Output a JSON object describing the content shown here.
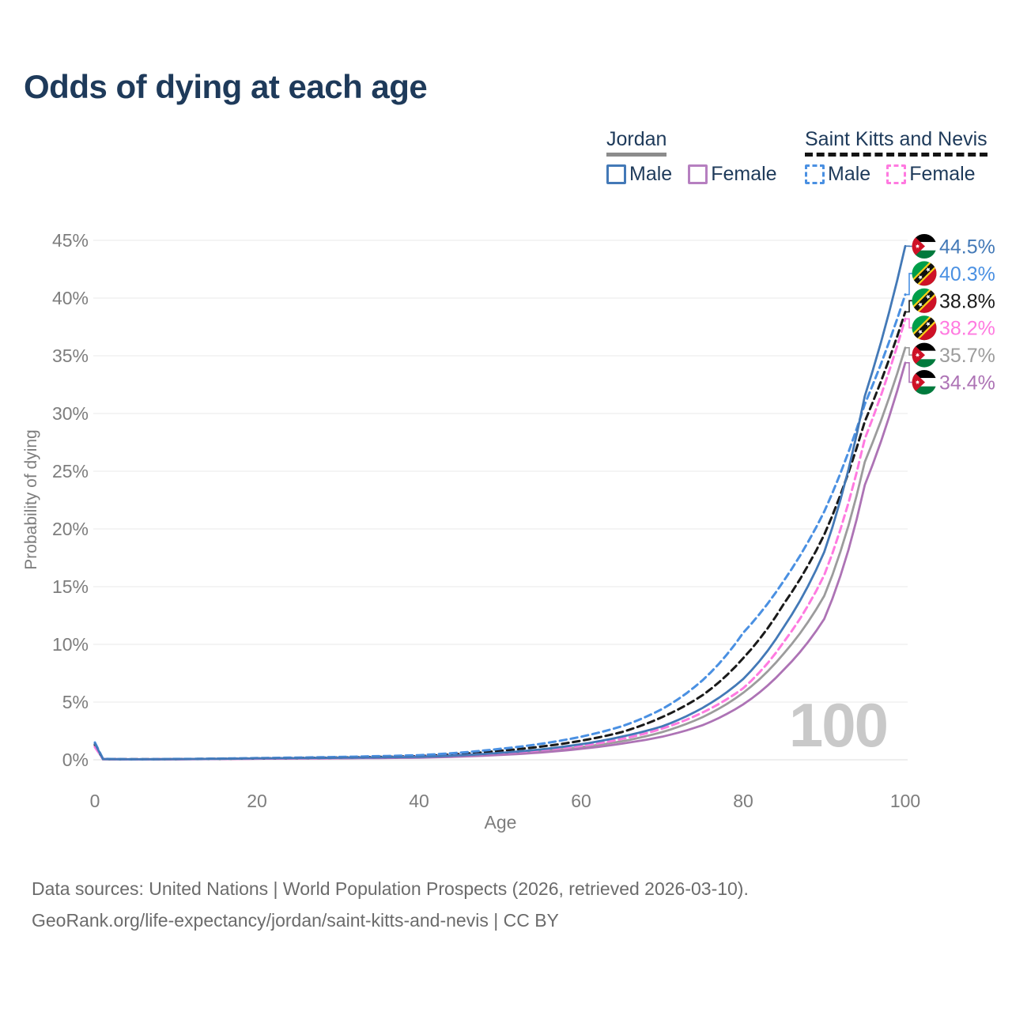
{
  "title": "Odds of dying at each age",
  "legend": {
    "groups": [
      {
        "country": "Jordan",
        "underline": "solid",
        "underline_color": "#8c8c8c",
        "items": [
          {
            "label": "Male",
            "color": "#4379b7",
            "dashed": false
          },
          {
            "label": "Female",
            "color": "#b67fc0",
            "dashed": false
          }
        ]
      },
      {
        "country": "Saint Kitts and Nevis",
        "underline": "dashed",
        "underline_color": "#141414",
        "items": [
          {
            "label": "Male",
            "color": "#4a90e2",
            "dashed": true
          },
          {
            "label": "Female",
            "color": "#ff7ae0",
            "dashed": true
          }
        ]
      }
    ]
  },
  "watermark": "100",
  "footer": {
    "line1": "Data sources: United Nations | World Population Prospects (2026, retrieved 2026-03-10).",
    "line2": "GeoRank.org/life-expectancy/jordan/saint-kitts-and-nevis | CC BY"
  },
  "chart_data": {
    "type": "line",
    "title": "Odds of dying at each age",
    "xlabel": "Age",
    "ylabel": "Probability of dying",
    "xlim": [
      0,
      100
    ],
    "ylim": [
      0,
      45
    ],
    "xticks": [
      0,
      20,
      40,
      60,
      80,
      100
    ],
    "yticks": [
      0,
      5,
      10,
      15,
      20,
      25,
      30,
      35,
      40,
      45
    ],
    "ytick_suffix": "%",
    "grid": true,
    "legend_position": "top-right",
    "anchor_ages": [
      0,
      1,
      5,
      20,
      40,
      50,
      60,
      65,
      70,
      75,
      80,
      85,
      90,
      95,
      100
    ],
    "series": [
      {
        "name": "Jordan Male",
        "slug": "jordan-male",
        "country": "Jordan",
        "sex": "Male",
        "flag": "jordan",
        "color": "#4379b7",
        "dashed": false,
        "end_value": 44.5,
        "end_label": "44.5%",
        "values": [
          1.4,
          0.06,
          0.04,
          0.12,
          0.25,
          0.6,
          1.35,
          2.0,
          2.9,
          4.5,
          7.0,
          11.5,
          18.0,
          31.5,
          44.5
        ]
      },
      {
        "name": "Saint Kitts and Nevis Male",
        "slug": "saint-kitts-and-nevis-male",
        "country": "Saint Kitts and Nevis",
        "sex": "Male",
        "flag": "skn",
        "color": "#4a90e2",
        "dashed": true,
        "end_value": 40.3,
        "end_label": "40.3%",
        "values": [
          1.5,
          0.08,
          0.05,
          0.15,
          0.4,
          0.95,
          2.0,
          2.9,
          4.4,
          6.9,
          11.0,
          15.5,
          21.5,
          30.8,
          40.3
        ]
      },
      {
        "name": "Saint Kitts and Nevis Both sexes",
        "slug": "saint-kitts-and-nevis-both",
        "country": "Saint Kitts and Nevis",
        "sex": "Both",
        "flag": "skn",
        "color": "#1a1a1a",
        "dashed": true,
        "end_value": 38.8,
        "end_label": "38.8%",
        "values": [
          1.3,
          0.07,
          0.045,
          0.12,
          0.32,
          0.78,
          1.65,
          2.4,
          3.7,
          5.6,
          8.8,
          13.5,
          19.5,
          29.3,
          38.8
        ]
      },
      {
        "name": "Saint Kitts and Nevis Female",
        "slug": "saint-kitts-and-nevis-female",
        "country": "Saint Kitts and Nevis",
        "sex": "Female",
        "flag": "skn",
        "color": "#ff7ae0",
        "dashed": true,
        "end_value": 38.2,
        "end_label": "38.2%",
        "values": [
          1.1,
          0.06,
          0.04,
          0.1,
          0.26,
          0.58,
          1.2,
          1.8,
          2.7,
          4.1,
          6.2,
          10.2,
          16.0,
          27.8,
          38.2
        ]
      },
      {
        "name": "Jordan Both sexes",
        "slug": "jordan-both",
        "country": "Jordan",
        "sex": "Both",
        "flag": "jordan",
        "color": "#9c9c9c",
        "dashed": false,
        "end_value": 35.7,
        "end_label": "35.7%",
        "values": [
          1.3,
          0.055,
          0.038,
          0.1,
          0.22,
          0.5,
          1.1,
          1.6,
          2.4,
          3.7,
          5.8,
          9.2,
          14.2,
          25.8,
          35.7
        ]
      },
      {
        "name": "Jordan Female",
        "slug": "jordan-female",
        "country": "Jordan",
        "sex": "Female",
        "flag": "jordan",
        "color": "#ad73b5",
        "dashed": false,
        "end_value": 34.4,
        "end_label": "34.4%",
        "values": [
          1.2,
          0.05,
          0.035,
          0.09,
          0.18,
          0.42,
          0.95,
          1.4,
          2.0,
          3.0,
          4.8,
          7.8,
          12.2,
          23.8,
          34.4
        ]
      }
    ],
    "flag_colors": {
      "jordan": {
        "black": "#000000",
        "white": "#ffffff",
        "green": "#007A3D",
        "red": "#CE1126"
      },
      "skn": {
        "green": "#009E49",
        "red": "#CE1126",
        "yellow": "#FCD116",
        "black": "#111111",
        "star": "#ffffff"
      }
    }
  }
}
